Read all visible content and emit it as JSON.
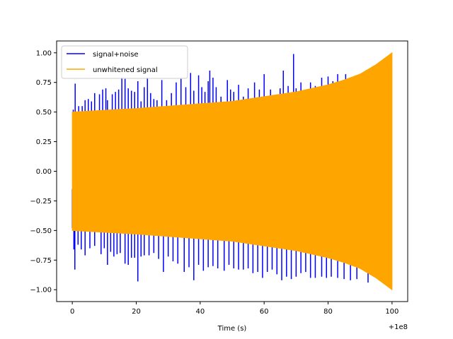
{
  "chart_data": {
    "type": "line",
    "xlabel": "Time (s)",
    "ylabel": "",
    "title": "",
    "x_offset_label": "+1e8",
    "xlim": [
      -4.9,
      104.9
    ],
    "ylim": [
      -1.1,
      1.1
    ],
    "x_ticks": [
      0,
      20,
      40,
      60,
      80,
      100
    ],
    "x_tick_labels": [
      "0",
      "20",
      "40",
      "60",
      "80",
      "100"
    ],
    "y_ticks": [
      1.0,
      0.75,
      0.5,
      0.25,
      0.0,
      -0.25,
      -0.5,
      -0.75,
      -1.0
    ],
    "y_tick_labels": [
      "1.00",
      "0.75",
      "0.50",
      "0.25",
      "0.00",
      "−0.25",
      "−0.50",
      "−0.75",
      "−1.00"
    ],
    "legend_position": "upper-left",
    "series": [
      {
        "name": "signal+noise",
        "color": "#0000ff",
        "noise_peaks": [
          [
            0.3,
            0.52
          ],
          [
            0.9,
            0.74
          ],
          [
            2.0,
            0.55
          ],
          [
            3.1,
            0.55
          ],
          [
            4.0,
            0.6
          ],
          [
            5.0,
            0.61
          ],
          [
            6.0,
            0.59
          ],
          [
            7.0,
            0.66
          ],
          [
            8.5,
            0.65
          ],
          [
            9.5,
            0.69
          ],
          [
            10.5,
            0.7
          ],
          [
            11.0,
            0.6
          ],
          [
            12.5,
            0.65
          ],
          [
            13.5,
            0.67
          ],
          [
            14.5,
            0.69
          ],
          [
            15.5,
            0.79
          ],
          [
            16.5,
            0.78
          ],
          [
            17.5,
            0.7
          ],
          [
            18.5,
            0.68
          ],
          [
            19.5,
            0.67
          ],
          [
            20.5,
            0.76
          ],
          [
            21.5,
            0.59
          ],
          [
            22.5,
            0.71
          ],
          [
            23.5,
            0.79
          ],
          [
            24.5,
            0.66
          ],
          [
            25.5,
            0.61
          ],
          [
            26.5,
            0.6
          ],
          [
            28.0,
            0.77
          ],
          [
            29.5,
            0.6
          ],
          [
            31.0,
            0.66
          ],
          [
            32.5,
            0.75
          ],
          [
            34.0,
            0.78
          ],
          [
            35.5,
            0.71
          ],
          [
            37.0,
            0.83
          ],
          [
            38.0,
            0.68
          ],
          [
            39.5,
            0.81
          ],
          [
            40.5,
            0.71
          ],
          [
            41.5,
            0.67
          ],
          [
            42.5,
            0.76
          ],
          [
            43.0,
            0.85
          ],
          [
            44.0,
            0.79
          ],
          [
            45.0,
            0.71
          ],
          [
            46.5,
            0.63
          ],
          [
            48.5,
            0.77
          ],
          [
            49.5,
            0.69
          ],
          [
            50.5,
            0.67
          ],
          [
            52.0,
            0.73
          ],
          [
            53.5,
            0.63
          ],
          [
            55.0,
            0.7
          ],
          [
            57.0,
            0.75
          ],
          [
            58.5,
            0.69
          ],
          [
            60.0,
            0.82
          ],
          [
            61.0,
            0.63
          ],
          [
            62.0,
            0.69
          ],
          [
            63.5,
            0.64
          ],
          [
            65.0,
            0.7
          ],
          [
            66.0,
            0.85
          ],
          [
            67.5,
            0.72
          ],
          [
            69.2,
            0.99
          ],
          [
            70.0,
            0.7
          ],
          [
            71.5,
            0.75
          ],
          [
            73.0,
            0.68
          ],
          [
            74.5,
            0.75
          ],
          [
            76.0,
            0.72
          ],
          [
            78.0,
            0.79
          ],
          [
            80.0,
            0.8
          ],
          [
            81.5,
            0.76
          ],
          [
            83.0,
            0.82
          ],
          [
            84.0,
            0.76
          ],
          [
            85.5,
            0.82
          ]
        ],
        "noise_troughs": [
          [
            0.5,
            -0.66
          ],
          [
            0.8,
            -0.83
          ],
          [
            1.8,
            -0.62
          ],
          [
            2.8,
            -0.66
          ],
          [
            4.0,
            -0.71
          ],
          [
            5.5,
            -0.65
          ],
          [
            7.0,
            -0.63
          ],
          [
            9.0,
            -0.7
          ],
          [
            10.0,
            -0.65
          ],
          [
            11.0,
            -0.79
          ],
          [
            12.0,
            -0.68
          ],
          [
            13.0,
            -0.72
          ],
          [
            14.0,
            -0.7
          ],
          [
            15.0,
            -0.69
          ],
          [
            16.5,
            -0.78
          ],
          [
            17.5,
            -0.79
          ],
          [
            18.5,
            -0.73
          ],
          [
            19.5,
            -0.73
          ],
          [
            20.5,
            -0.93
          ],
          [
            21.5,
            -0.72
          ],
          [
            22.5,
            -0.71
          ],
          [
            24.0,
            -0.71
          ],
          [
            25.5,
            -0.69
          ],
          [
            27.0,
            -0.74
          ],
          [
            28.5,
            -0.85
          ],
          [
            30.0,
            -0.72
          ],
          [
            31.5,
            -0.76
          ],
          [
            33.0,
            -0.78
          ],
          [
            35.0,
            -0.85
          ],
          [
            36.5,
            -0.81
          ],
          [
            38.0,
            -0.92
          ],
          [
            39.5,
            -0.79
          ],
          [
            41.0,
            -0.84
          ],
          [
            42.5,
            -0.81
          ],
          [
            44.0,
            -0.8
          ],
          [
            45.5,
            -0.82
          ],
          [
            47.5,
            -0.84
          ],
          [
            49.0,
            -0.79
          ],
          [
            50.5,
            -0.82
          ],
          [
            52.0,
            -0.83
          ],
          [
            53.5,
            -0.83
          ],
          [
            55.0,
            -0.82
          ],
          [
            56.5,
            -0.86
          ],
          [
            58.0,
            -0.85
          ],
          [
            59.5,
            -0.9
          ],
          [
            61.0,
            -0.85
          ],
          [
            62.5,
            -0.83
          ],
          [
            64.0,
            -0.87
          ],
          [
            65.5,
            -0.92
          ],
          [
            67.0,
            -0.89
          ],
          [
            68.5,
            -0.91
          ],
          [
            70.0,
            -0.89
          ],
          [
            71.5,
            -0.86
          ],
          [
            73.0,
            -0.85
          ],
          [
            74.5,
            -0.9
          ],
          [
            76.0,
            -0.9
          ],
          [
            78.0,
            -0.89
          ],
          [
            79.5,
            -0.9
          ],
          [
            81.0,
            -0.89
          ],
          [
            83.0,
            -0.9
          ],
          [
            85.0,
            -0.91
          ],
          [
            87.0,
            -0.92
          ],
          [
            89.0,
            -0.91
          ],
          [
            92.5,
            -0.94
          ]
        ]
      },
      {
        "name": "unwhitened signal",
        "color": "#ffa500",
        "envelope": [
          [
            0,
            0.5
          ],
          [
            10,
            0.515
          ],
          [
            20,
            0.53
          ],
          [
            30,
            0.55
          ],
          [
            40,
            0.57
          ],
          [
            50,
            0.59
          ],
          [
            60,
            0.63
          ],
          [
            70,
            0.67
          ],
          [
            80,
            0.73
          ],
          [
            85,
            0.77
          ],
          [
            90,
            0.82
          ],
          [
            95,
            0.9
          ],
          [
            98,
            0.96
          ],
          [
            100,
            1.0
          ]
        ]
      }
    ]
  }
}
